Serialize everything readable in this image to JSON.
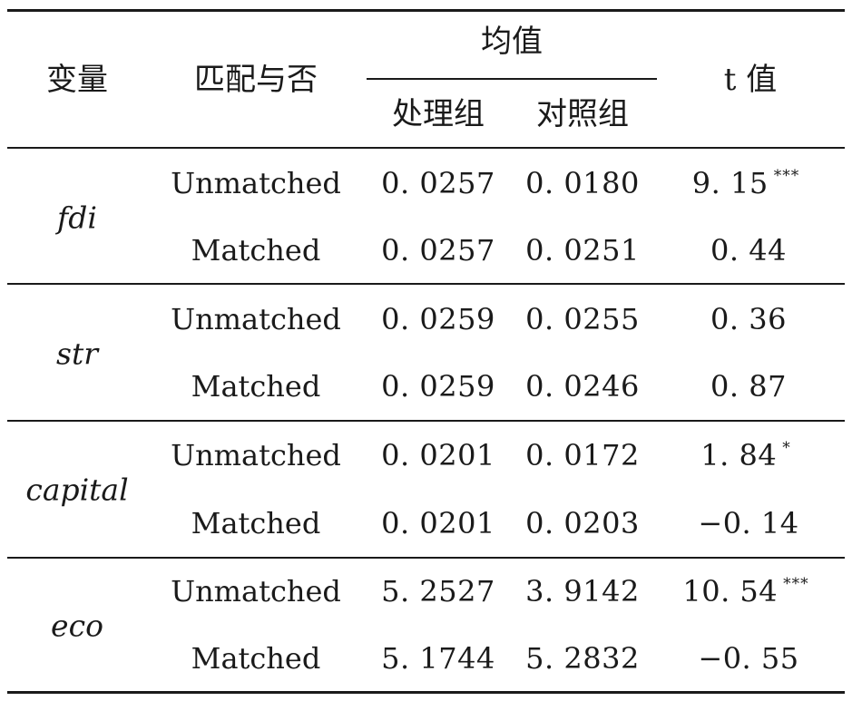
{
  "table": {
    "headers": {
      "variable": "变量",
      "matched": "匹配与否",
      "mean": "均值",
      "treatment": "处理组",
      "control": "对照组",
      "tvalue": "t 值"
    },
    "groups": [
      {
        "variable": "fdi",
        "rows": [
          {
            "matched": "Unmatched",
            "treatment": "0. 0257",
            "control": "0. 0180",
            "t": "9. 15",
            "sig": "***"
          },
          {
            "matched": "Matched",
            "treatment": "0. 0257",
            "control": "0. 0251",
            "t": "0. 44",
            "sig": ""
          }
        ]
      },
      {
        "variable": "str",
        "rows": [
          {
            "matched": "Unmatched",
            "treatment": "0. 0259",
            "control": "0. 0255",
            "t": "0. 36",
            "sig": ""
          },
          {
            "matched": "Matched",
            "treatment": "0. 0259",
            "control": "0. 0246",
            "t": "0. 87",
            "sig": ""
          }
        ]
      },
      {
        "variable": "capital",
        "rows": [
          {
            "matched": "Unmatched",
            "treatment": "0. 0201",
            "control": "0. 0172",
            "t": "1. 84",
            "sig": "*"
          },
          {
            "matched": "Matched",
            "treatment": "0. 0201",
            "control": "0. 0203",
            "t": "−0. 14",
            "sig": ""
          }
        ]
      },
      {
        "variable": "eco",
        "rows": [
          {
            "matched": "Unmatched",
            "treatment": "5. 2527",
            "control": "3. 9142",
            "t": "10. 54",
            "sig": "***"
          },
          {
            "matched": "Matched",
            "treatment": "5. 1744",
            "control": "5. 2832",
            "t": "−0. 55",
            "sig": ""
          }
        ]
      }
    ]
  }
}
